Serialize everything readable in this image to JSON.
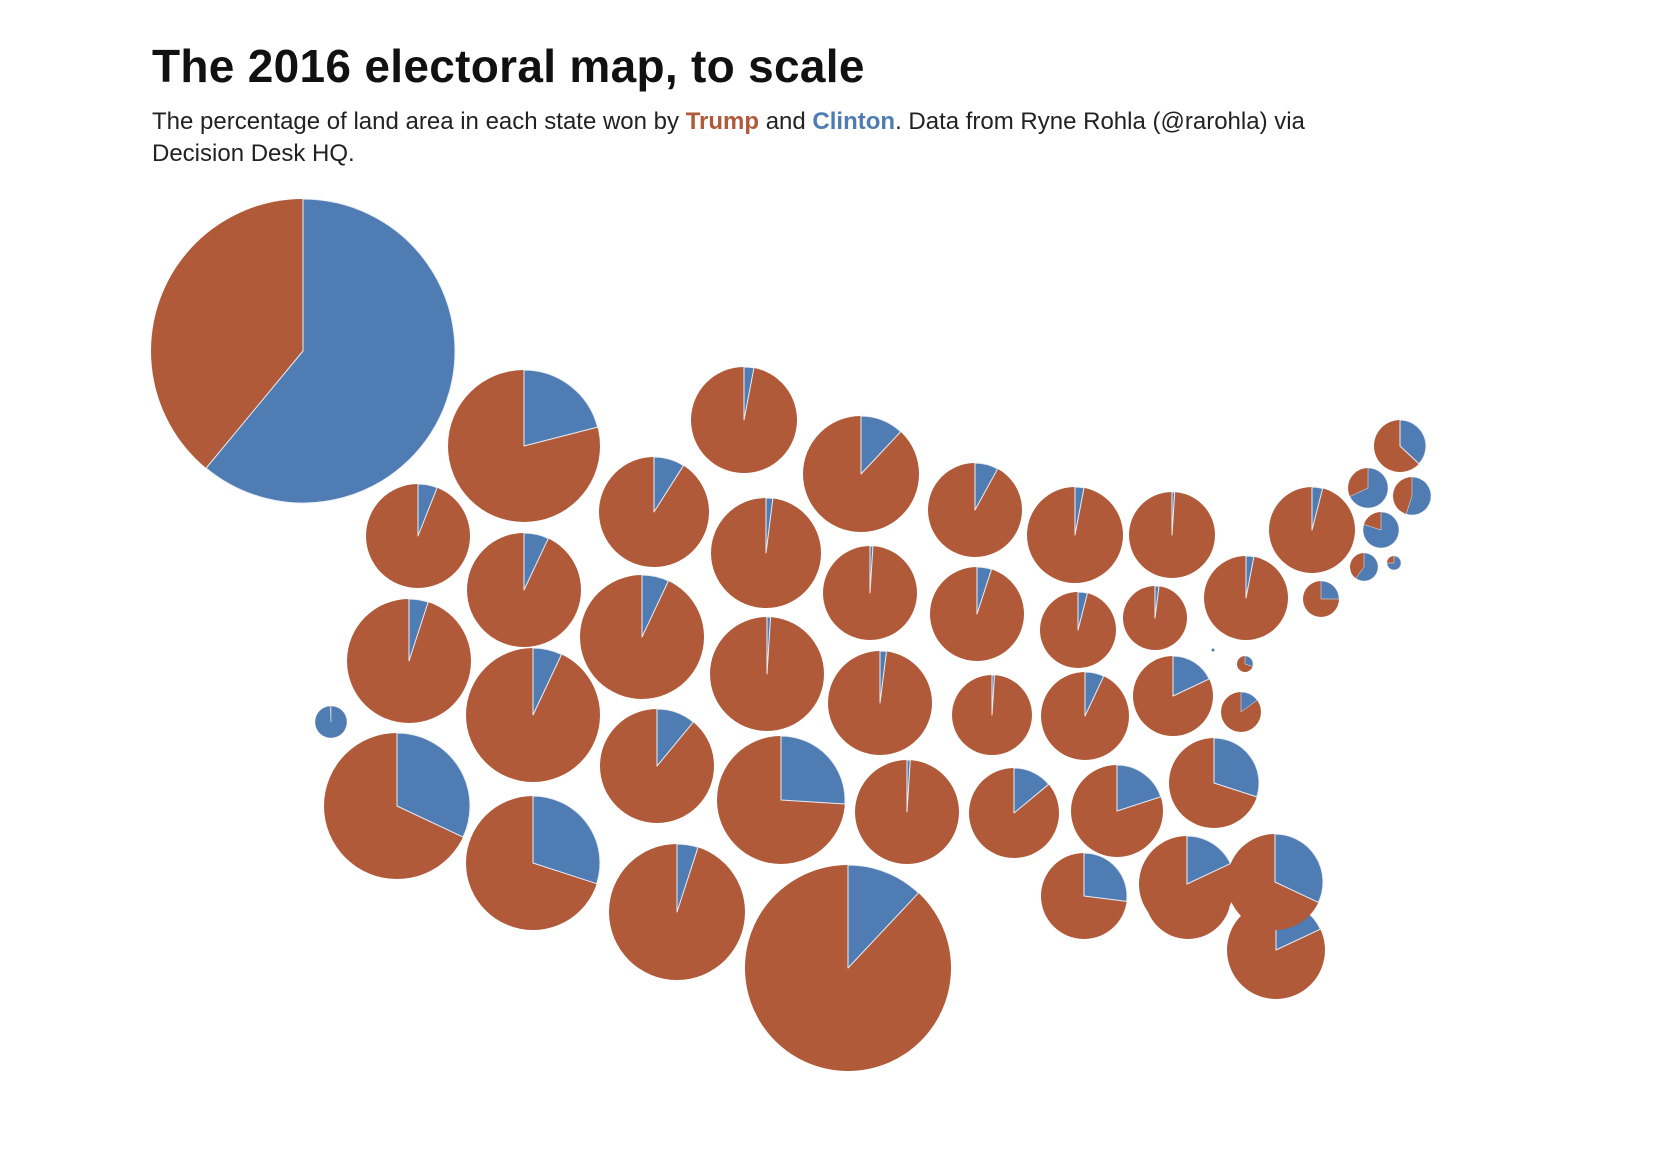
{
  "chart_data": {
    "type": "pie",
    "title": "The 2016 electoral map, to scale",
    "subtitle": {
      "before": "The percentage of land area in each state won by ",
      "trump": "Trump",
      "and": " and ",
      "clinton": "Clinton",
      "after": ". Data from Ryne Rohla (@rarohla) via Decision Desk HQ."
    },
    "colors": {
      "trump": "#b05a3a",
      "clinton": "#4f7cb2"
    },
    "pies": [
      {
        "id": "alaska",
        "clinton": 0.61
      },
      {
        "id": "washington-state",
        "clinton": 0.21
      },
      {
        "id": "oregon",
        "clinton": 0.06
      },
      {
        "id": "california",
        "clinton": 0.32
      },
      {
        "id": "hawaii",
        "clinton": 0.99
      },
      {
        "id": "montana",
        "clinton": 0.07
      },
      {
        "id": "idaho",
        "clinton": 0.05
      },
      {
        "id": "nevada",
        "clinton": 0.07
      },
      {
        "id": "utah",
        "clinton": 0.3
      },
      {
        "id": "arizona",
        "clinton": 0.05
      },
      {
        "id": "wyoming",
        "clinton": 0.03
      },
      {
        "id": "colorado",
        "clinton": 0.09
      },
      {
        "id": "new-mexico",
        "clinton": 0.07
      },
      {
        "id": "north-dakota",
        "clinton": 0.02
      },
      {
        "id": "south-dakota",
        "clinton": 0.01
      },
      {
        "id": "nebraska",
        "clinton": 0.01
      },
      {
        "id": "kansas",
        "clinton": 0.11
      },
      {
        "id": "oklahoma",
        "clinton": 0.26
      },
      {
        "id": "texas",
        "clinton": 0.12
      },
      {
        "id": "minnesota",
        "clinton": 0.12
      },
      {
        "id": "iowa",
        "clinton": 0.02
      },
      {
        "id": "missouri",
        "clinton": 0.01
      },
      {
        "id": "arkansas",
        "clinton": 0.01
      },
      {
        "id": "louisiana",
        "clinton": 0.14
      },
      {
        "id": "wisconsin",
        "clinton": 0.08
      },
      {
        "id": "illinois",
        "clinton": 0.05
      },
      {
        "id": "kentucky",
        "clinton": 0.04
      },
      {
        "id": "tennessee",
        "clinton": 0.07
      },
      {
        "id": "mississippi",
        "clinton": 0.27
      },
      {
        "id": "michigan",
        "clinton": 0.03
      },
      {
        "id": "indiana",
        "clinton": 0.02
      },
      {
        "id": "west-virginia",
        "clinton": 0.01
      },
      {
        "id": "alabama",
        "clinton": 0.2
      },
      {
        "id": "georgia",
        "clinton": 0.29
      },
      {
        "id": "ohio",
        "clinton": 0.03
      },
      {
        "id": "virginia",
        "clinton": 0.18
      },
      {
        "id": "south-carolina",
        "clinton": 0.18
      },
      {
        "id": "florida",
        "clinton": 0.18
      },
      {
        "id": "pennsylvania",
        "clinton": 0.04
      },
      {
        "id": "north-carolina",
        "clinton": 0.3
      },
      {
        "id": "new-york",
        "clinton": 0.32
      },
      {
        "id": "maryland",
        "clinton": 0.15
      },
      {
        "id": "new-jersey",
        "clinton": 0.25
      },
      {
        "id": "delaware",
        "clinton": 0.3
      },
      {
        "id": "dc",
        "clinton": 1.0
      },
      {
        "id": "maine",
        "clinton": 0.37
      },
      {
        "id": "vermont",
        "clinton": 0.68
      },
      {
        "id": "new-hampshire",
        "clinton": 0.55
      },
      {
        "id": "massachusetts",
        "clinton": 0.8
      },
      {
        "id": "connecticut",
        "clinton": 0.6
      },
      {
        "id": "rhode-island",
        "clinton": 0.75
      }
    ]
  }
}
